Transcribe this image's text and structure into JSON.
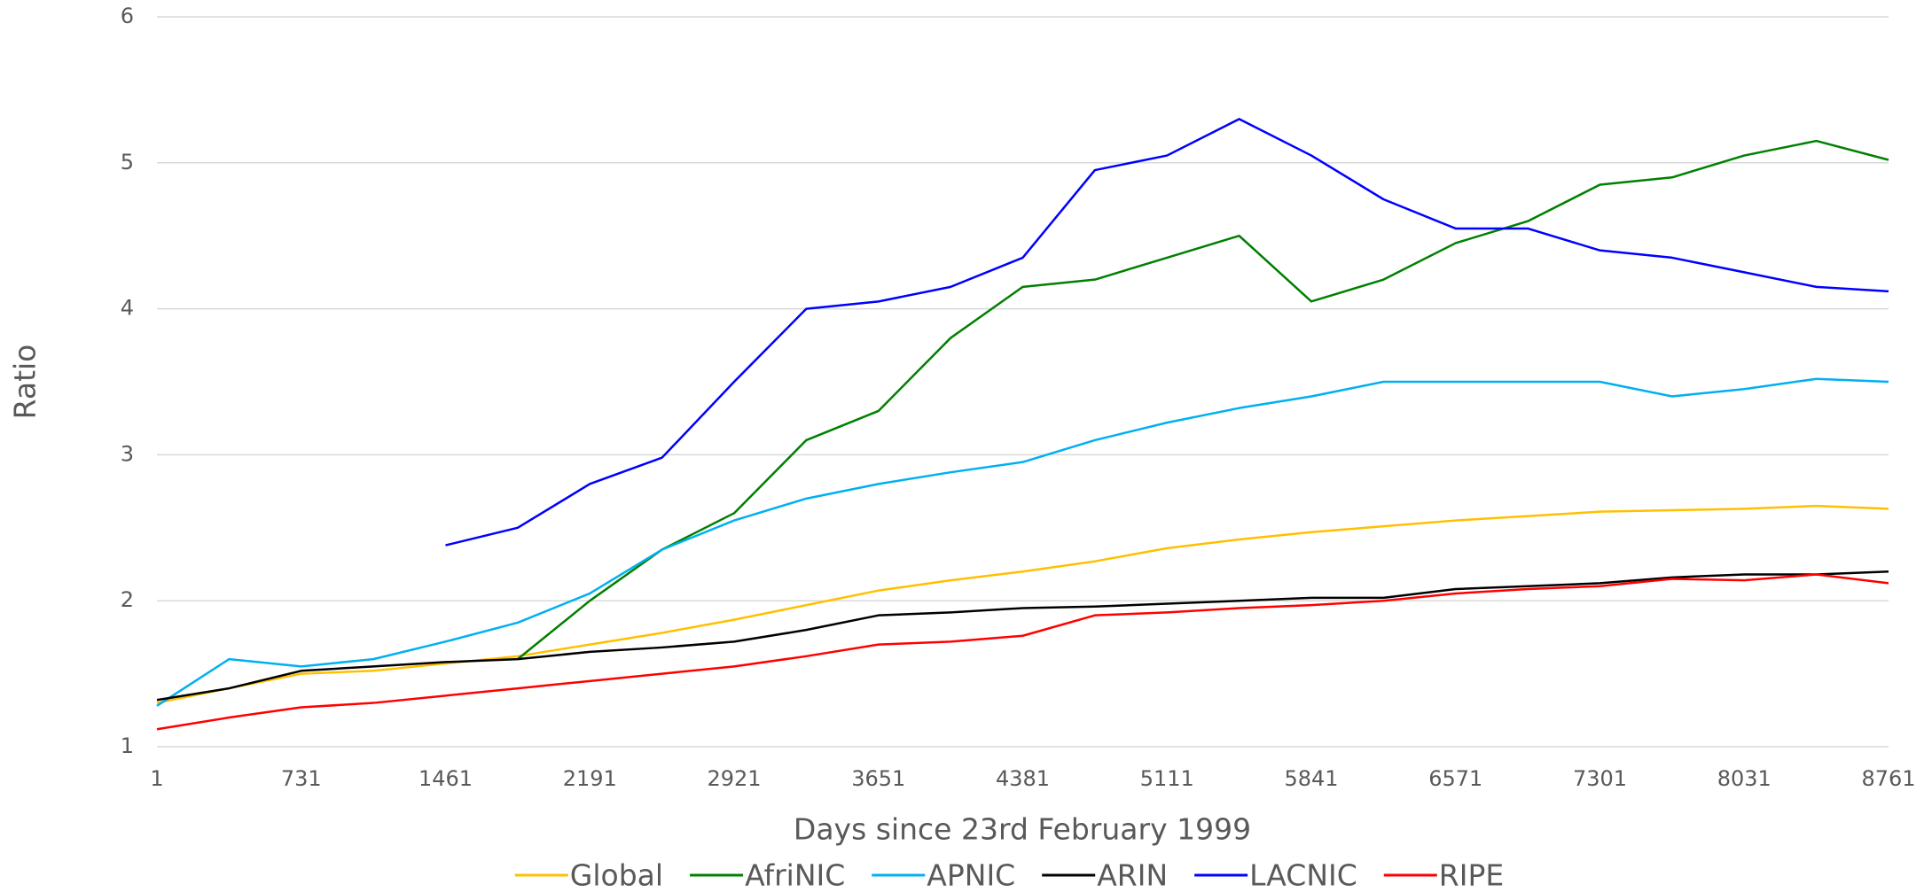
{
  "chart_data": {
    "type": "line",
    "x_label": "Days since 23rd February 1999",
    "y_label": "Ratio",
    "x": [
      1,
      366,
      731,
      1096,
      1461,
      1826,
      2191,
      2556,
      2921,
      3286,
      3651,
      4016,
      4381,
      4746,
      5111,
      5476,
      5841,
      6206,
      6571,
      6936,
      7301,
      7666,
      8031,
      8396,
      8761
    ],
    "series": [
      {
        "name": "Global",
        "color": "#ffc000",
        "values": [
          1.3,
          1.4,
          1.5,
          1.52,
          1.57,
          1.62,
          1.7,
          1.78,
          1.87,
          1.97,
          2.07,
          2.14,
          2.2,
          2.27,
          2.36,
          2.42,
          2.47,
          2.51,
          2.55,
          2.58,
          2.61,
          2.62,
          2.63,
          2.65,
          2.63
        ]
      },
      {
        "name": "AfriNIC",
        "color": "#008000",
        "values": [
          null,
          null,
          null,
          null,
          null,
          1.6,
          2.0,
          2.35,
          2.6,
          3.1,
          3.3,
          3.8,
          4.15,
          4.2,
          4.35,
          4.5,
          4.05,
          4.2,
          4.45,
          4.6,
          4.85,
          4.9,
          5.05,
          5.15,
          5.02
        ]
      },
      {
        "name": "APNIC",
        "color": "#00b0f0",
        "values": [
          1.28,
          1.6,
          1.55,
          1.6,
          1.72,
          1.85,
          2.05,
          2.35,
          2.55,
          2.7,
          2.8,
          2.88,
          2.95,
          3.1,
          3.22,
          3.32,
          3.4,
          3.5,
          3.5,
          3.5,
          3.5,
          3.4,
          3.45,
          3.52,
          3.5
        ]
      },
      {
        "name": "ARIN",
        "color": "#000000",
        "values": [
          1.32,
          1.4,
          1.52,
          1.55,
          1.58,
          1.6,
          1.65,
          1.68,
          1.72,
          1.8,
          1.9,
          1.92,
          1.95,
          1.96,
          1.98,
          2.0,
          2.02,
          2.02,
          2.08,
          2.1,
          2.12,
          2.16,
          2.18,
          2.18,
          2.2
        ]
      },
      {
        "name": "LACNIC",
        "color": "#0000ff",
        "values": [
          null,
          null,
          null,
          null,
          2.38,
          2.5,
          2.8,
          2.98,
          3.5,
          4.0,
          4.05,
          4.15,
          4.35,
          4.95,
          5.05,
          5.3,
          5.05,
          4.75,
          4.55,
          4.55,
          4.4,
          4.35,
          4.25,
          4.15,
          4.12
        ]
      },
      {
        "name": "RIPE",
        "color": "#ff0000",
        "values": [
          1.12,
          1.2,
          1.27,
          1.3,
          1.35,
          1.4,
          1.45,
          1.5,
          1.55,
          1.62,
          1.7,
          1.72,
          1.76,
          1.9,
          1.92,
          1.95,
          1.97,
          2.0,
          2.05,
          2.08,
          2.1,
          2.15,
          2.14,
          2.18,
          2.12
        ]
      }
    ],
    "xlim": [
      1,
      8761
    ],
    "xticks": [
      1,
      731,
      1461,
      2191,
      2921,
      3651,
      4381,
      5111,
      5841,
      6571,
      7301,
      8031,
      8761
    ],
    "ylim": [
      1,
      6
    ],
    "yticks": [
      1,
      2,
      3,
      4,
      5,
      6
    ],
    "grid": true,
    "legend": "bottom"
  }
}
